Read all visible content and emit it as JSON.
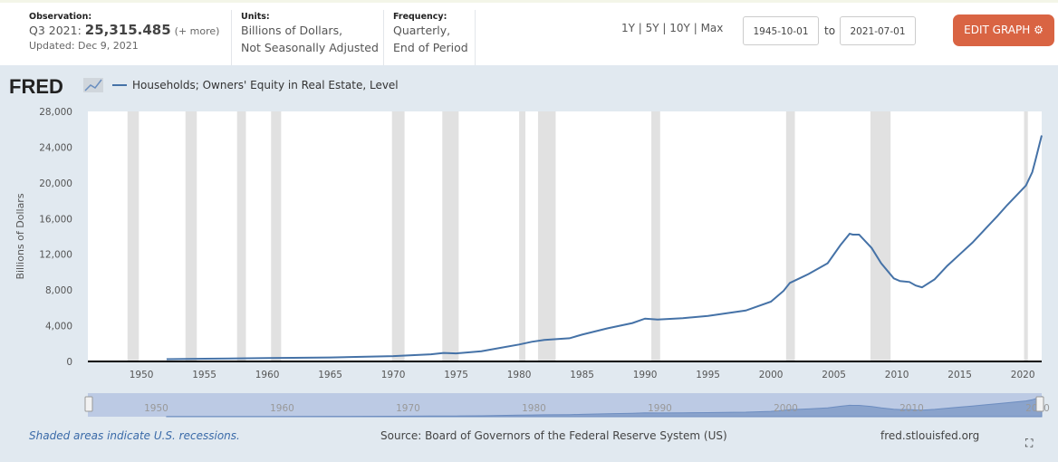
{
  "header": {
    "observation_label": "Observation:",
    "observation_period": "Q3 2021:",
    "observation_value": "25,315.485",
    "observation_more": "(+ more)",
    "updated": "Updated: Dec 9, 2021",
    "units_label": "Units:",
    "units_line1": "Billions of Dollars,",
    "units_line2": "Not Seasonally Adjusted",
    "frequency_label": "Frequency:",
    "frequency_line1": "Quarterly,",
    "frequency_line2": "End of Period",
    "ranges": [
      "1Y",
      "5Y",
      "10Y",
      "Max"
    ],
    "start_date": "1945-10-01",
    "to_label": "to",
    "end_date": "2021-07-01",
    "edit_button": "EDIT GRAPH"
  },
  "colors": {
    "accent": "#d96443",
    "series": "#4572a7",
    "recession": "#e1e1e1",
    "panel": "#e1e9f0"
  },
  "chart_data": {
    "type": "line",
    "logo": "FRED",
    "legend": "Households; Owners' Equity in Real Estate, Level",
    "ylabel": "Billions of Dollars",
    "ylim": [
      0,
      28000
    ],
    "xlim": [
      1945.75,
      2021.5
    ],
    "yticks": [
      0,
      4000,
      8000,
      12000,
      16000,
      20000,
      24000,
      28000
    ],
    "ytick_labels": [
      "0",
      "4,000",
      "8,000",
      "12,000",
      "16,000",
      "20,000",
      "24,000",
      "28,000"
    ],
    "xticks": [
      1950,
      1955,
      1960,
      1965,
      1970,
      1975,
      1980,
      1985,
      1990,
      1995,
      2000,
      2005,
      2010,
      2015,
      2020
    ],
    "navigator_ticks": [
      1950,
      1960,
      1970,
      1980,
      1990,
      2000,
      2010,
      2020
    ],
    "recessions": [
      [
        1948.9,
        1949.8
      ],
      [
        1953.5,
        1954.4
      ],
      [
        1957.6,
        1958.3
      ],
      [
        1960.3,
        1961.1
      ],
      [
        1969.9,
        1970.9
      ],
      [
        1973.9,
        1975.2
      ],
      [
        1980.0,
        1980.5
      ],
      [
        1981.5,
        1982.9
      ],
      [
        1990.5,
        1991.2
      ],
      [
        2001.2,
        2001.9
      ],
      [
        2007.9,
        2009.5
      ],
      [
        2020.1,
        2020.4
      ]
    ],
    "series": [
      {
        "name": "Households; Owners' Equity in Real Estate, Level",
        "points": [
          [
            1952,
            250
          ],
          [
            1955,
            300
          ],
          [
            1960,
            380
          ],
          [
            1965,
            450
          ],
          [
            1970,
            600
          ],
          [
            1973,
            800
          ],
          [
            1974,
            950
          ],
          [
            1975,
            900
          ],
          [
            1977,
            1150
          ],
          [
            1980,
            1900
          ],
          [
            1981,
            2200
          ],
          [
            1982,
            2400
          ],
          [
            1984,
            2600
          ],
          [
            1985,
            3000
          ],
          [
            1987,
            3700
          ],
          [
            1989,
            4300
          ],
          [
            1990,
            4800
          ],
          [
            1991,
            4700
          ],
          [
            1993,
            4850
          ],
          [
            1995,
            5100
          ],
          [
            1997,
            5500
          ],
          [
            1998,
            5700
          ],
          [
            2000,
            6700
          ],
          [
            2001,
            7900
          ],
          [
            2001.5,
            8800
          ],
          [
            2003,
            9800
          ],
          [
            2004.5,
            11000
          ],
          [
            2005.5,
            13000
          ],
          [
            2006.25,
            14300
          ],
          [
            2006.5,
            14200
          ],
          [
            2007,
            14200
          ],
          [
            2008,
            12700
          ],
          [
            2008.75,
            11000
          ],
          [
            2009.75,
            9300
          ],
          [
            2010.25,
            9000
          ],
          [
            2011,
            8900
          ],
          [
            2011.5,
            8500
          ],
          [
            2012,
            8300
          ],
          [
            2013,
            9200
          ],
          [
            2014,
            10700
          ],
          [
            2015,
            12000
          ],
          [
            2016,
            13300
          ],
          [
            2017,
            14800
          ],
          [
            2018,
            16300
          ],
          [
            2018.75,
            17500
          ],
          [
            2019.5,
            18600
          ],
          [
            2020.25,
            19700
          ],
          [
            2020.75,
            21200
          ],
          [
            2021,
            22500
          ],
          [
            2021.5,
            25315.485
          ]
        ]
      }
    ]
  },
  "footer": {
    "recession_note": "Shaded areas indicate U.S. recessions.",
    "source": "Source: Board of Governors of the Federal Reserve System (US)",
    "site": "fred.stlouisfed.org"
  }
}
